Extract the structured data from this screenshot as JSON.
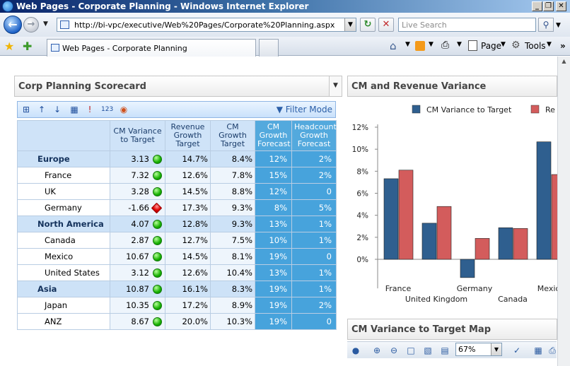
{
  "window": {
    "title": "Web Pages - Corporate Planning - Windows Internet Explorer",
    "minimize": "_",
    "restore": "❐",
    "close": "✕"
  },
  "address_bar": {
    "url": "http://bi-vpc/executive/Web%20Pages/Corporate%20Planning.aspx",
    "search_placeholder": "Live Search"
  },
  "tab": {
    "label": "Web Pages - Corporate Planning"
  },
  "commands": {
    "page": "Page",
    "tools": "Tools"
  },
  "scorecard": {
    "title": "Corp Planning Scorecard",
    "filter_mode": "Filter Mode",
    "headers": [
      "CM Variance to Target",
      "Revenue Growth Target",
      "CM Growth Target",
      "CM Growth Forecast",
      "Headcount Growth Forecast"
    ],
    "rows": [
      {
        "name": "Europe",
        "region": true,
        "cm_var": "3.13",
        "status": "green",
        "rev": "14.7%",
        "cm_target": "8.4%",
        "cm_fc": "12%",
        "hc_fc": "2%"
      },
      {
        "name": "France",
        "region": false,
        "cm_var": "7.32",
        "status": "green",
        "rev": "12.6%",
        "cm_target": "7.8%",
        "cm_fc": "15%",
        "hc_fc": "2%"
      },
      {
        "name": "UK",
        "region": false,
        "cm_var": "3.28",
        "status": "green",
        "rev": "14.5%",
        "cm_target": "8.8%",
        "cm_fc": "12%",
        "hc_fc": "0"
      },
      {
        "name": "Germany",
        "region": false,
        "cm_var": "-1.66",
        "status": "red",
        "rev": "17.3%",
        "cm_target": "9.3%",
        "cm_fc": "8%",
        "hc_fc": "5%"
      },
      {
        "name": "North America",
        "region": true,
        "cm_var": "4.07",
        "status": "green",
        "rev": "12.8%",
        "cm_target": "9.3%",
        "cm_fc": "13%",
        "hc_fc": "1%"
      },
      {
        "name": "Canada",
        "region": false,
        "cm_var": "2.87",
        "status": "green",
        "rev": "12.7%",
        "cm_target": "7.5%",
        "cm_fc": "10%",
        "hc_fc": "1%"
      },
      {
        "name": "Mexico",
        "region": false,
        "cm_var": "10.67",
        "status": "green",
        "rev": "14.5%",
        "cm_target": "8.1%",
        "cm_fc": "19%",
        "hc_fc": "0"
      },
      {
        "name": "United States",
        "region": false,
        "cm_var": "3.12",
        "status": "green",
        "rev": "12.6%",
        "cm_target": "10.4%",
        "cm_fc": "13%",
        "hc_fc": "1%"
      },
      {
        "name": "Asia",
        "region": true,
        "cm_var": "10.87",
        "status": "green",
        "rev": "16.1%",
        "cm_target": "8.3%",
        "cm_fc": "19%",
        "hc_fc": "1%"
      },
      {
        "name": "Japan",
        "region": false,
        "cm_var": "10.35",
        "status": "green",
        "rev": "17.2%",
        "cm_target": "8.9%",
        "cm_fc": "19%",
        "hc_fc": "2%"
      },
      {
        "name": "ANZ",
        "region": false,
        "cm_var": "8.67",
        "status": "green",
        "rev": "20.0%",
        "cm_target": "10.3%",
        "cm_fc": "19%",
        "hc_fc": "0"
      }
    ]
  },
  "chart_panel": {
    "title": "CM and Revenue Variance"
  },
  "chart_data": {
    "type": "bar",
    "title": "",
    "categories": [
      "France",
      "United Kingdom",
      "Germany",
      "Canada",
      "Mexico"
    ],
    "series": [
      {
        "name": "CM Variance to Target",
        "color": "#2f5f8f",
        "values": [
          7.32,
          3.28,
          -1.66,
          2.87,
          10.67
        ]
      },
      {
        "name": "Re",
        "color": "#d35c5c",
        "values": [
          8.1,
          4.8,
          1.9,
          2.8,
          7.7
        ]
      }
    ],
    "yticks": [
      "12%",
      "10%",
      "8%",
      "6%",
      "4%",
      "2%",
      "0%"
    ],
    "ylim": [
      -2,
      12
    ],
    "grid": false,
    "legend_position": "top"
  },
  "map_panel": {
    "title": "CM Variance to Target Map",
    "zoom": "67%"
  }
}
